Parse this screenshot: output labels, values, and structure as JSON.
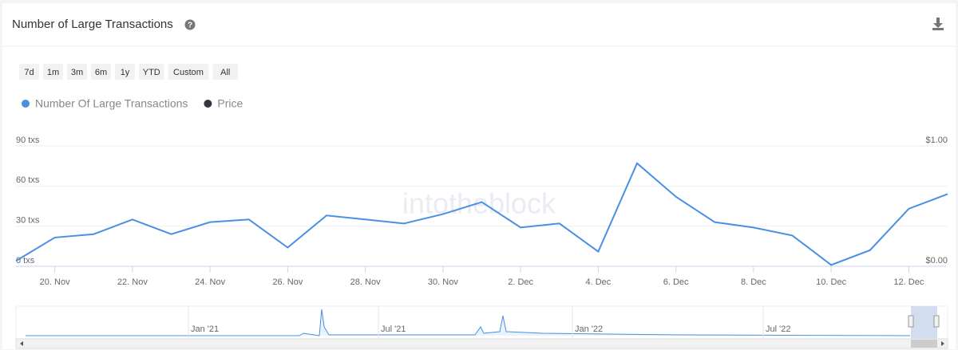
{
  "header": {
    "title": "Number of Large Transactions"
  },
  "range_buttons": [
    "7d",
    "1m",
    "3m",
    "6m",
    "1y",
    "YTD",
    "Custom",
    "All"
  ],
  "watermark": "intotheblock",
  "navigator_labels": [
    "Jan '21",
    "Jul '21",
    "Jan '22",
    "Jul '22"
  ],
  "chart_data": {
    "type": "line",
    "categories": [
      null,
      "20. Nov",
      null,
      "22. Nov",
      null,
      "24. Nov",
      null,
      "26. Nov",
      null,
      "28. Nov",
      null,
      "30. Nov",
      null,
      "2. Dec",
      null,
      "4. Dec",
      null,
      "6. Dec",
      null,
      "8. Dec",
      null,
      "10. Dec",
      null,
      "12. Dec",
      null
    ],
    "series": [
      {
        "name": "Number Of Large Transactions",
        "color": "#4a90e2",
        "values": [
          4,
          21.5,
          24,
          35,
          24,
          33,
          35,
          14,
          38,
          35,
          32,
          39,
          48,
          29,
          32,
          11,
          77,
          52,
          33,
          29,
          23,
          1,
          12,
          43,
          54
        ]
      },
      {
        "name": "Price",
        "color": "#333840",
        "axis": "y2",
        "values": [
          null,
          null,
          null,
          null,
          null,
          null,
          null,
          null,
          null,
          null,
          null,
          null,
          null,
          null,
          null,
          null,
          null,
          null,
          null,
          null,
          null,
          null,
          null,
          null,
          null
        ]
      }
    ],
    "ylim": [
      0,
      90
    ],
    "yticks": [
      {
        "value": 0,
        "label": "0 txs"
      },
      {
        "value": 30,
        "label": "30 txs"
      },
      {
        "value": 60,
        "label": "60 txs"
      },
      {
        "value": 90,
        "label": "90 txs"
      }
    ],
    "y2lim": [
      0,
      1
    ],
    "y2ticks": [
      {
        "value": 0,
        "label": "$0.00"
      },
      {
        "value": 1,
        "label": "$1.00"
      }
    ],
    "grid": true
  }
}
